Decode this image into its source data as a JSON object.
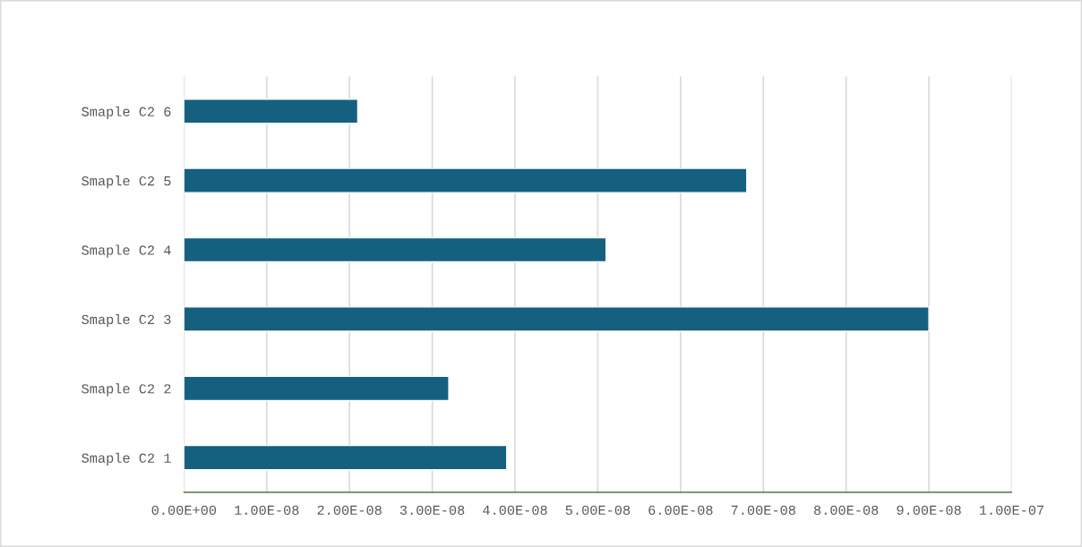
{
  "chart_data": {
    "type": "bar",
    "orientation": "horizontal",
    "categories": [
      "Smaple C2 6",
      "Smaple C2 5",
      "Smaple C2 4",
      "Smaple C2 3",
      "Smaple C2 2",
      "Smaple C2 1"
    ],
    "values": [
      2.1e-08,
      6.8e-08,
      5.1e-08,
      9e-08,
      3.2e-08,
      3.9e-08
    ],
    "color": "#16607f",
    "xlim": [
      0,
      1e-07
    ],
    "xticks": [
      {
        "value": 0,
        "label": "0.00E+00"
      },
      {
        "value": 1e-08,
        "label": "1.00E-08"
      },
      {
        "value": 2e-08,
        "label": "2.00E-08"
      },
      {
        "value": 3e-08,
        "label": "3.00E-08"
      },
      {
        "value": 4e-08,
        "label": "4.00E-08"
      },
      {
        "value": 5e-08,
        "label": "5.00E-08"
      },
      {
        "value": 6e-08,
        "label": "6.00E-08"
      },
      {
        "value": 7e-08,
        "label": "7.00E-08"
      },
      {
        "value": 8e-08,
        "label": "8.00E-08"
      },
      {
        "value": 9e-08,
        "label": "9.00E-08"
      },
      {
        "value": 1e-07,
        "label": "1.00E-07"
      }
    ],
    "grid": "x"
  }
}
